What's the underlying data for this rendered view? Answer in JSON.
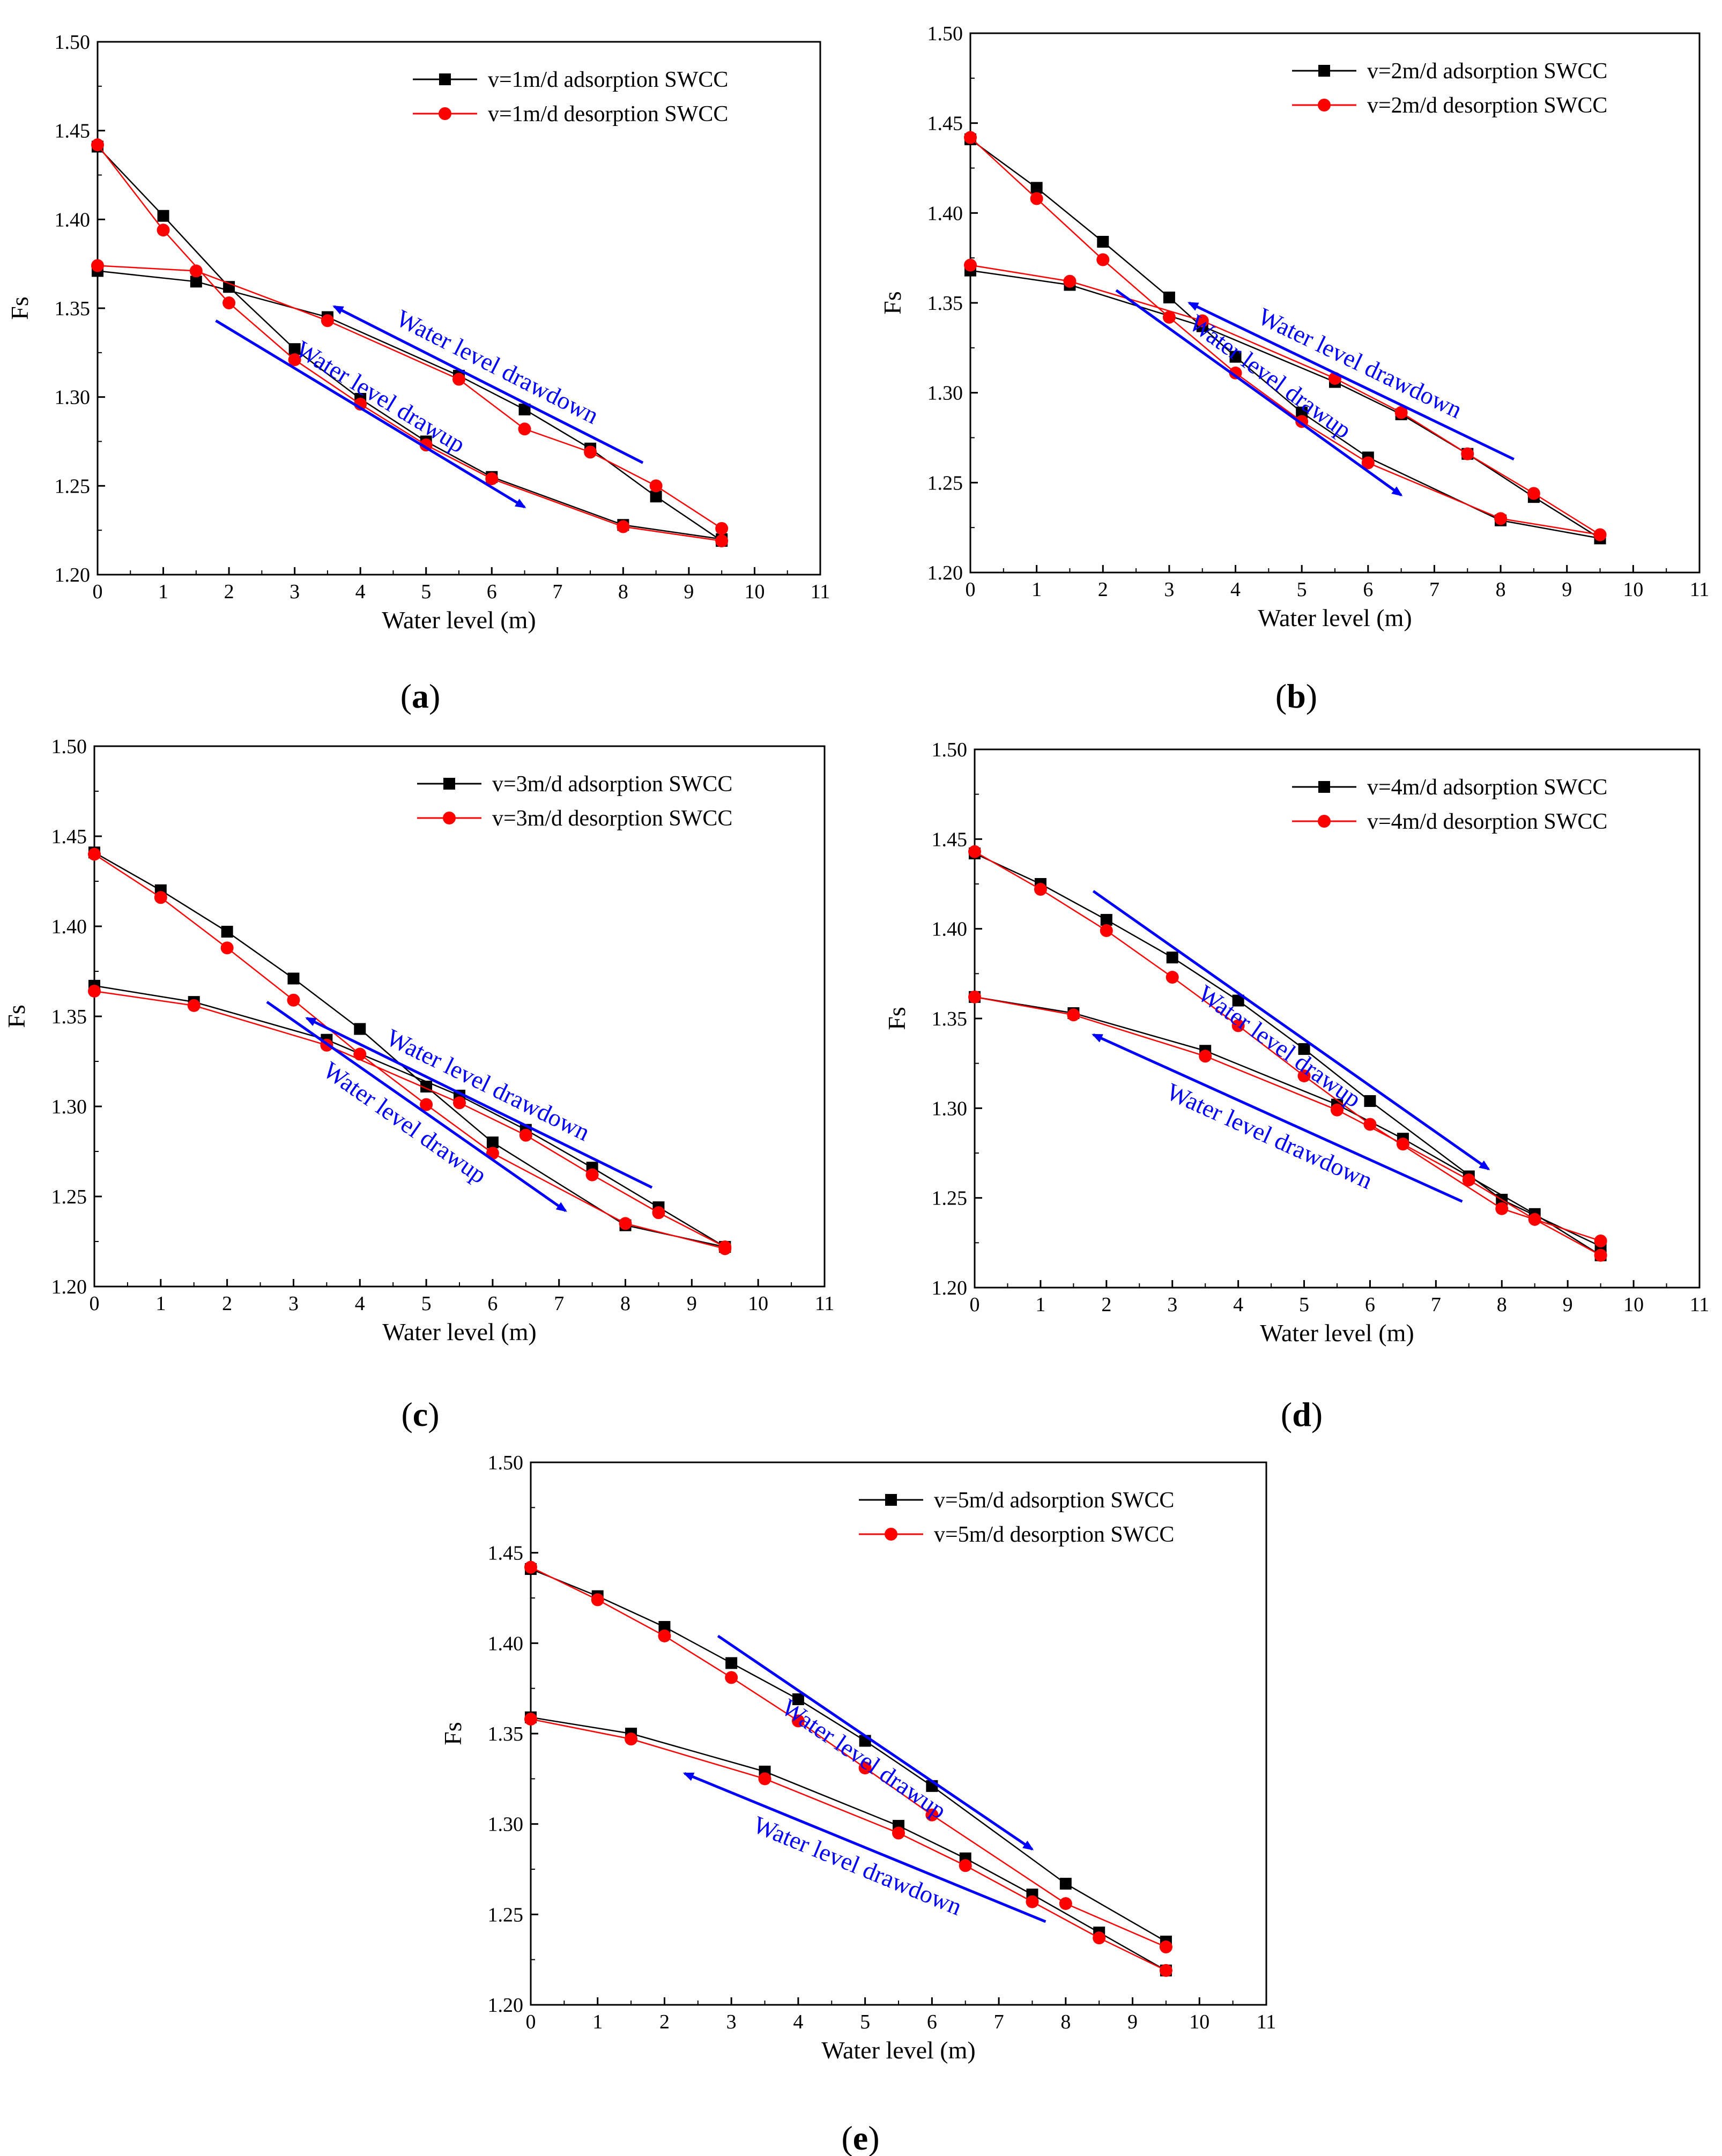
{
  "figure": {
    "axis_xlabel": "Water level (m)",
    "axis_ylabel": "Fs",
    "colors": {
      "adsorption": "#000000",
      "desorption": "#ff0000",
      "annotation": "#0000ff",
      "frame": "#000000"
    }
  },
  "chart_data": [
    {
      "panel": "a",
      "type": "line",
      "xlabel": "Water level (m)",
      "ylabel": "Fs",
      "xlim": [
        0,
        11
      ],
      "ylim": [
        1.2,
        1.5
      ],
      "x_ticks": [
        "0",
        "1",
        "2",
        "3",
        "4",
        "5",
        "6",
        "7",
        "8",
        "9",
        "10",
        "11"
      ],
      "y_ticks": [
        "1.20",
        "1.25",
        "1.30",
        "1.35",
        "1.40",
        "1.45",
        "1.50"
      ],
      "legend": [
        "v=1m/d adsorption SWCC",
        "v=1m/d desorption SWCC"
      ],
      "series": [
        {
          "name": "adsorption drawup",
          "color": "#000000",
          "marker": "square",
          "x": [
            0,
            1,
            2,
            3,
            4,
            5,
            6,
            8,
            9.5
          ],
          "y": [
            1.441,
            1.402,
            1.362,
            1.327,
            1.299,
            1.275,
            1.255,
            1.228,
            1.22
          ]
        },
        {
          "name": "adsorption drawdown",
          "color": "#000000",
          "marker": "square",
          "x": [
            0,
            1.5,
            3.5,
            5.5,
            6.5,
            7.5,
            8.5,
            9.5
          ],
          "y": [
            1.371,
            1.365,
            1.345,
            1.312,
            1.293,
            1.271,
            1.244,
            1.219
          ]
        },
        {
          "name": "desorption drawup",
          "color": "#ff0000",
          "marker": "circle",
          "x": [
            0,
            1,
            2,
            3,
            4,
            5,
            6,
            8,
            9.5
          ],
          "y": [
            1.442,
            1.394,
            1.353,
            1.321,
            1.296,
            1.273,
            1.254,
            1.227,
            1.219
          ]
        },
        {
          "name": "desorption drawdown",
          "color": "#ff0000",
          "marker": "circle",
          "x": [
            0,
            1.5,
            3.5,
            5.5,
            6.5,
            7.5,
            8.5,
            9.5
          ],
          "y": [
            1.374,
            1.371,
            1.343,
            1.31,
            1.282,
            1.269,
            1.25,
            1.226
          ]
        }
      ],
      "annotations": [
        {
          "text": "Water level drawdown",
          "from": [
            8.3,
            1.263
          ],
          "to": [
            3.6,
            1.351
          ],
          "arrow": "end",
          "text_side": "above"
        },
        {
          "text": "Water level drawup",
          "from": [
            1.8,
            1.343
          ],
          "to": [
            6.5,
            1.238
          ],
          "arrow": "end",
          "text_side": "above"
        }
      ]
    },
    {
      "panel": "b",
      "type": "line",
      "xlabel": "Water level (m)",
      "ylabel": "Fs",
      "xlim": [
        0,
        11
      ],
      "ylim": [
        1.2,
        1.5
      ],
      "x_ticks": [
        "0",
        "1",
        "2",
        "3",
        "4",
        "5",
        "6",
        "7",
        "8",
        "9",
        "10",
        "11"
      ],
      "y_ticks": [
        "1.20",
        "1.25",
        "1.30",
        "1.35",
        "1.40",
        "1.45",
        "1.50"
      ],
      "legend": [
        "v=2m/d adsorption SWCC",
        "v=2m/d desorption SWCC"
      ],
      "series": [
        {
          "name": "adsorption drawup",
          "color": "#000000",
          "marker": "square",
          "x": [
            0,
            1,
            2,
            3,
            4,
            5,
            6,
            8,
            9.5
          ],
          "y": [
            1.441,
            1.414,
            1.384,
            1.353,
            1.32,
            1.289,
            1.264,
            1.229,
            1.219
          ]
        },
        {
          "name": "adsorption drawdown",
          "color": "#000000",
          "marker": "square",
          "x": [
            0,
            1.5,
            3.5,
            5.5,
            6.5,
            7.5,
            8.5,
            9.5
          ],
          "y": [
            1.368,
            1.36,
            1.337,
            1.306,
            1.288,
            1.266,
            1.242,
            1.219
          ]
        },
        {
          "name": "desorption drawup",
          "color": "#ff0000",
          "marker": "circle",
          "x": [
            0,
            1,
            2,
            3,
            4,
            5,
            6,
            8,
            9.5
          ],
          "y": [
            1.442,
            1.408,
            1.374,
            1.342,
            1.311,
            1.284,
            1.261,
            1.23,
            1.221
          ]
        },
        {
          "name": "desorption drawdown",
          "color": "#ff0000",
          "marker": "circle",
          "x": [
            0,
            1.5,
            3.5,
            5.5,
            6.5,
            7.5,
            8.5,
            9.5
          ],
          "y": [
            1.371,
            1.362,
            1.34,
            1.308,
            1.289,
            1.266,
            1.244,
            1.221
          ]
        }
      ],
      "annotations": [
        {
          "text": "Water level drawdown",
          "from": [
            8.2,
            1.263
          ],
          "to": [
            3.3,
            1.35
          ],
          "arrow": "end",
          "text_side": "above"
        },
        {
          "text": "Water level drawup",
          "from": [
            2.2,
            1.357
          ],
          "to": [
            6.5,
            1.243
          ],
          "arrow": "end",
          "text_side": "above"
        }
      ]
    },
    {
      "panel": "c",
      "type": "line",
      "xlabel": "Water level (m)",
      "ylabel": "Fs",
      "xlim": [
        0,
        11
      ],
      "ylim": [
        1.2,
        1.5
      ],
      "x_ticks": [
        "0",
        "1",
        "2",
        "3",
        "4",
        "5",
        "6",
        "7",
        "8",
        "9",
        "10",
        "11"
      ],
      "y_ticks": [
        "1.20",
        "1.25",
        "1.30",
        "1.35",
        "1.40",
        "1.45",
        "1.50"
      ],
      "legend": [
        "v=3m/d adsorption SWCC",
        "v=3m/d desorption SWCC"
      ],
      "series": [
        {
          "name": "adsorption drawup",
          "color": "#000000",
          "marker": "square",
          "x": [
            0,
            1,
            2,
            3,
            4,
            5,
            6,
            8,
            9.5
          ],
          "y": [
            1.441,
            1.42,
            1.397,
            1.371,
            1.343,
            1.311,
            1.28,
            1.234,
            1.222
          ]
        },
        {
          "name": "adsorption drawdown",
          "color": "#000000",
          "marker": "square",
          "x": [
            0,
            1.5,
            3.5,
            5.5,
            6.5,
            7.5,
            8.5,
            9.5
          ],
          "y": [
            1.367,
            1.358,
            1.337,
            1.306,
            1.287,
            1.266,
            1.244,
            1.222
          ]
        },
        {
          "name": "desorption drawup",
          "color": "#ff0000",
          "marker": "circle",
          "x": [
            0,
            1,
            2,
            3,
            4,
            5,
            6,
            8,
            9.5
          ],
          "y": [
            1.44,
            1.416,
            1.388,
            1.359,
            1.329,
            1.301,
            1.274,
            1.235,
            1.221
          ]
        },
        {
          "name": "desorption drawdown",
          "color": "#ff0000",
          "marker": "circle",
          "x": [
            0,
            1.5,
            3.5,
            5.5,
            6.5,
            7.5,
            8.5,
            9.5
          ],
          "y": [
            1.364,
            1.356,
            1.334,
            1.302,
            1.284,
            1.262,
            1.241,
            1.222
          ]
        }
      ],
      "annotations": [
        {
          "text": "Water level drawdown",
          "from": [
            8.4,
            1.255
          ],
          "to": [
            3.2,
            1.349
          ],
          "arrow": "end",
          "text_side": "above"
        },
        {
          "text": "Water level drawup",
          "from": [
            2.6,
            1.358
          ],
          "to": [
            7.1,
            1.242
          ],
          "arrow": "end",
          "text_side": "below"
        }
      ]
    },
    {
      "panel": "d",
      "type": "line",
      "xlabel": "Water level (m)",
      "ylabel": "Fs",
      "xlim": [
        0,
        11
      ],
      "ylim": [
        1.2,
        1.5
      ],
      "x_ticks": [
        "0",
        "1",
        "2",
        "3",
        "4",
        "5",
        "6",
        "7",
        "8",
        "9",
        "10",
        "11"
      ],
      "y_ticks": [
        "1.20",
        "1.25",
        "1.30",
        "1.35",
        "1.40",
        "1.45",
        "1.50"
      ],
      "legend": [
        "v=4m/d adsorption SWCC",
        "v=4m/d desorption SWCC"
      ],
      "series": [
        {
          "name": "adsorption drawup",
          "color": "#000000",
          "marker": "square",
          "x": [
            0,
            1,
            2,
            3,
            4,
            5,
            6,
            8,
            9.5
          ],
          "y": [
            1.442,
            1.425,
            1.405,
            1.384,
            1.36,
            1.333,
            1.304,
            1.249,
            1.223
          ]
        },
        {
          "name": "adsorption drawdown",
          "color": "#000000",
          "marker": "square",
          "x": [
            0,
            1.5,
            3.5,
            5.5,
            6.5,
            7.5,
            8.5,
            9.5
          ],
          "y": [
            1.362,
            1.353,
            1.332,
            1.302,
            1.283,
            1.262,
            1.241,
            1.218
          ]
        },
        {
          "name": "desorption drawup",
          "color": "#ff0000",
          "marker": "circle",
          "x": [
            0,
            1,
            2,
            3,
            4,
            5,
            6,
            8,
            9.5
          ],
          "y": [
            1.443,
            1.422,
            1.399,
            1.373,
            1.346,
            1.318,
            1.291,
            1.244,
            1.226
          ]
        },
        {
          "name": "desorption drawdown",
          "color": "#ff0000",
          "marker": "circle",
          "x": [
            0,
            1.5,
            3.5,
            5.5,
            6.5,
            7.5,
            8.5,
            9.5
          ],
          "y": [
            1.362,
            1.352,
            1.329,
            1.299,
            1.28,
            1.26,
            1.238,
            1.218
          ]
        }
      ],
      "annotations": [
        {
          "text": "Water level drawup",
          "from": [
            1.8,
            1.421
          ],
          "to": [
            7.8,
            1.266
          ],
          "arrow": "end",
          "text_side": "below"
        },
        {
          "text": "Water level drawdown",
          "from": [
            7.4,
            1.248
          ],
          "to": [
            1.8,
            1.341
          ],
          "arrow": "end",
          "text_side": "below"
        }
      ]
    },
    {
      "panel": "e",
      "type": "line",
      "xlabel": "Water level (m)",
      "ylabel": "Fs",
      "xlim": [
        0,
        11
      ],
      "ylim": [
        1.2,
        1.5
      ],
      "x_ticks": [
        "0",
        "1",
        "2",
        "3",
        "4",
        "5",
        "6",
        "7",
        "8",
        "9",
        "10",
        "11"
      ],
      "y_ticks": [
        "1.20",
        "1.25",
        "1.30",
        "1.35",
        "1.40",
        "1.45",
        "1.50"
      ],
      "legend": [
        "v=5m/d adsorption SWCC",
        "v=5m/d desorption SWCC"
      ],
      "series": [
        {
          "name": "adsorption drawup",
          "color": "#000000",
          "marker": "square",
          "x": [
            0,
            1,
            2,
            3,
            4,
            5,
            6,
            8,
            9.5
          ],
          "y": [
            1.441,
            1.426,
            1.409,
            1.389,
            1.369,
            1.346,
            1.321,
            1.267,
            1.235
          ]
        },
        {
          "name": "adsorption drawdown",
          "color": "#000000",
          "marker": "square",
          "x": [
            0,
            1.5,
            3.5,
            5.5,
            6.5,
            7.5,
            8.5,
            9.5
          ],
          "y": [
            1.359,
            1.35,
            1.329,
            1.299,
            1.281,
            1.261,
            1.24,
            1.219
          ]
        },
        {
          "name": "desorption drawup",
          "color": "#ff0000",
          "marker": "circle",
          "x": [
            0,
            1,
            2,
            3,
            4,
            5,
            6,
            8,
            9.5
          ],
          "y": [
            1.442,
            1.424,
            1.404,
            1.381,
            1.357,
            1.331,
            1.305,
            1.256,
            1.232
          ]
        },
        {
          "name": "desorption drawdown",
          "color": "#ff0000",
          "marker": "circle",
          "x": [
            0,
            1.5,
            3.5,
            5.5,
            6.5,
            7.5,
            8.5,
            9.5
          ],
          "y": [
            1.358,
            1.347,
            1.325,
            1.295,
            1.277,
            1.257,
            1.237,
            1.219
          ]
        }
      ],
      "annotations": [
        {
          "text": "Water level drawup",
          "from": [
            2.8,
            1.404
          ],
          "to": [
            7.5,
            1.286
          ],
          "arrow": "end",
          "text_side": "below"
        },
        {
          "text": "Water level drawdown",
          "from": [
            7.7,
            1.246
          ],
          "to": [
            2.3,
            1.328
          ],
          "arrow": "end",
          "text_side": "below"
        }
      ]
    }
  ],
  "panel_labels": [
    "(a)",
    "(b)",
    "(c)",
    "(d)",
    "(e)"
  ]
}
